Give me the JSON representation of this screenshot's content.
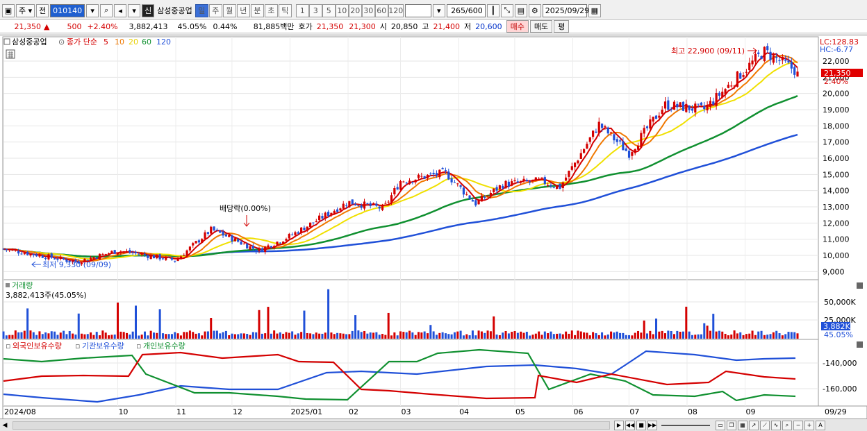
{
  "toolbar": {
    "period_main": "주",
    "prev_label": "전",
    "stock_code": "010140",
    "credit_badge": "신",
    "stock_name": "삼성중공업",
    "period_tabs": [
      "일",
      "주",
      "월",
      "년",
      "분",
      "초",
      "틱"
    ],
    "minute_options": [
      "1",
      "3",
      "5",
      "10",
      "20",
      "30",
      "60",
      "120"
    ],
    "count_display": "265/600",
    "date_value": "2025/09/29"
  },
  "quote": {
    "price": "21,350",
    "change_arrow": "▲",
    "change": "500",
    "change_pct": "+2.40%",
    "volume": "3,882,413",
    "volume_ratio": "45.05%",
    "turnover_pct": "0.44%",
    "amount": "81,885백만",
    "bid_label": "호가",
    "ask_price": "21,350",
    "bid_price": "21,300",
    "open_label": "시",
    "open": "20,850",
    "high_label": "고",
    "high": "21,400",
    "low_label": "저",
    "low": "20,600",
    "buy_button": "매수",
    "sell_button": "매도",
    "eval_button": "평"
  },
  "price_panel": {
    "stock_label": "삼성중공업",
    "indicator_label": "종가 단순",
    "ma_labels": [
      {
        "text": "5",
        "color": "#d40000"
      },
      {
        "text": "10",
        "color": "#f07800"
      },
      {
        "text": "20",
        "color": "#e8d800"
      },
      {
        "text": "60",
        "color": "#109030"
      },
      {
        "text": "120",
        "color": "#2050d8"
      }
    ],
    "lc_label": "LC:128.83",
    "hc_label": "HC:-6.77",
    "current_price_tag": "21,350",
    "current_pct_tag": "2.40%",
    "high_annotation": "최고 22,900 (09/11)",
    "low_annotation": "최저 9,330 (09/09)",
    "dividend_annotation": "배당락(0.00%)"
  },
  "volume_panel": {
    "title": "거래량",
    "value_label": "3,882,413주(45.05%)",
    "current_tag": "3,882K",
    "pct_tag": "45.05%"
  },
  "holdings_panel": {
    "legend": [
      {
        "text": "외국인보유수량",
        "color": "#d40000"
      },
      {
        "text": "기관보유수량",
        "color": "#2050d8"
      },
      {
        "text": "개인보유수량",
        "color": "#109030"
      }
    ]
  },
  "colors": {
    "up": "#d40000",
    "down": "#2050d8",
    "ma5": "#d40000",
    "ma10": "#f07800",
    "ma20": "#f0e000",
    "ma60": "#109030",
    "ma120": "#2050d8"
  },
  "chart_data": [
    {
      "type": "candlestick",
      "title": "삼성중공업 종가 단순 5 10 20 60 120",
      "y_ticks": [
        "22,000",
        "21,000",
        "20,000",
        "19,000",
        "18,000",
        "17,000",
        "16,000",
        "15,000",
        "14,000",
        "13,000",
        "12,000",
        "11,000",
        "10,000",
        "9,000"
      ],
      "ylim": [
        8500,
        23500
      ],
      "x_ticks": [
        "2024/08",
        "10",
        "11",
        "12",
        "2025/01",
        "02",
        "03",
        "04",
        "05",
        "06",
        "07",
        "08",
        "09",
        "09/29"
      ],
      "x_range": [
        "2024-08",
        "2025-09-29"
      ],
      "close_trend": [
        {
          "x": "2024-08",
          "y": 10400
        },
        {
          "x": "2024-09-09",
          "y": 9600
        },
        {
          "x": "2024-10-01",
          "y": 10300
        },
        {
          "x": "2024-11-01",
          "y": 9700
        },
        {
          "x": "2024-11-20",
          "y": 11600
        },
        {
          "x": "2024-12-15",
          "y": 10300
        },
        {
          "x": "2025-01-01",
          "y": 11200
        },
        {
          "x": "2025-02-01",
          "y": 13300
        },
        {
          "x": "2025-02-20",
          "y": 12900
        },
        {
          "x": "2025-03-01",
          "y": 14600
        },
        {
          "x": "2025-03-25",
          "y": 15100
        },
        {
          "x": "2025-04-10",
          "y": 13200
        },
        {
          "x": "2025-04-25",
          "y": 14400
        },
        {
          "x": "2025-05-15",
          "y": 14600
        },
        {
          "x": "2025-05-25",
          "y": 14200
        },
        {
          "x": "2025-06-15",
          "y": 18100
        },
        {
          "x": "2025-07-01",
          "y": 16300
        },
        {
          "x": "2025-07-20",
          "y": 19300
        },
        {
          "x": "2025-08-10",
          "y": 19000
        },
        {
          "x": "2025-09-11",
          "y": 22600
        },
        {
          "x": "2025-09-29",
          "y": 21350
        }
      ],
      "annotations": [
        "최고 22,900 (09/11)",
        "최저 9,330 (09/09)",
        "배당락(0.00%)"
      ],
      "current_price": 21350
    },
    {
      "type": "bar",
      "title": "거래량",
      "y_ticks": [
        "50,000K",
        "25,000K"
      ],
      "current_value": 3882413
    },
    {
      "type": "line",
      "title": "외국인보유수량 · 기관보유수량 · 개인보유수량",
      "y_ticks": [
        "-140,000",
        "-160,000"
      ],
      "series": [
        {
          "name": "외국인보유수량",
          "color": "#d40000"
        },
        {
          "name": "기관보유수량",
          "color": "#2050d8"
        },
        {
          "name": "개인보유수량",
          "color": "#109030"
        }
      ]
    }
  ]
}
